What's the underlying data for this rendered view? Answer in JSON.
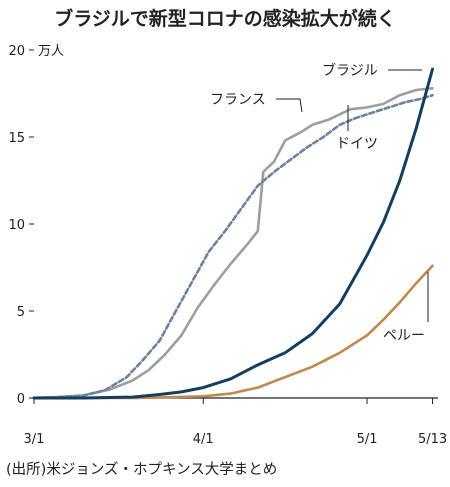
{
  "chart_data": {
    "type": "line",
    "title": "ブラジルで新型コロナの感染拡大が続く",
    "source": "(出所)米ジョンズ・ホプキンス大学まとめ",
    "ylabel": "万人",
    "ylim": [
      0,
      20
    ],
    "yticks": [
      0,
      5,
      10,
      15,
      20
    ],
    "xlim": [
      "2020-03-01",
      "2020-05-14"
    ],
    "xticks": [
      {
        "date": "2020-03-01",
        "label": "3/1"
      },
      {
        "date": "2020-04-01",
        "label": "4/1"
      },
      {
        "date": "2020-05-01",
        "label": "5/1"
      },
      {
        "date": "2020-05-13",
        "label": "5/13"
      }
    ],
    "grid": false,
    "legend": "direct labels",
    "series": [
      {
        "name": "ブラジル",
        "color": "#163d5e",
        "style": "solid",
        "points": [
          [
            "2020-03-01",
            0
          ],
          [
            "2020-03-10",
            0
          ],
          [
            "2020-03-19",
            0.05
          ],
          [
            "2020-03-24",
            0.2
          ],
          [
            "2020-03-28",
            0.35
          ],
          [
            "2020-04-01",
            0.6
          ],
          [
            "2020-04-06",
            1.1
          ],
          [
            "2020-04-11",
            1.9
          ],
          [
            "2020-04-16",
            2.6
          ],
          [
            "2020-04-21",
            3.7
          ],
          [
            "2020-04-26",
            5.4
          ],
          [
            "2020-05-01",
            8.2
          ],
          [
            "2020-05-04",
            10.1
          ],
          [
            "2020-05-07",
            12.5
          ],
          [
            "2020-05-10",
            15.5
          ],
          [
            "2020-05-13",
            18.9
          ]
        ]
      },
      {
        "name": "フランス",
        "color": "#9e9e9e",
        "style": "solid",
        "points": [
          [
            "2020-03-01",
            0.01
          ],
          [
            "2020-03-05",
            0.05
          ],
          [
            "2020-03-10",
            0.15
          ],
          [
            "2020-03-15",
            0.5
          ],
          [
            "2020-03-19",
            1.0
          ],
          [
            "2020-03-22",
            1.6
          ],
          [
            "2020-03-25",
            2.5
          ],
          [
            "2020-03-28",
            3.6
          ],
          [
            "2020-03-31",
            5.2
          ],
          [
            "2020-04-03",
            6.5
          ],
          [
            "2020-04-06",
            7.7
          ],
          [
            "2020-04-09",
            8.8
          ],
          [
            "2020-04-11",
            9.6
          ],
          [
            "2020-04-12",
            13.0
          ],
          [
            "2020-04-14",
            13.6
          ],
          [
            "2020-04-16",
            14.8
          ],
          [
            "2020-04-19",
            15.3
          ],
          [
            "2020-04-21",
            15.7
          ],
          [
            "2020-04-24",
            16.0
          ],
          [
            "2020-04-28",
            16.6
          ],
          [
            "2020-05-01",
            16.7
          ],
          [
            "2020-05-04",
            16.9
          ],
          [
            "2020-05-07",
            17.4
          ],
          [
            "2020-05-10",
            17.7
          ],
          [
            "2020-05-13",
            17.8
          ]
        ]
      },
      {
        "name": "ドイツ",
        "color": "#6b82a0",
        "style": "dashed",
        "points": [
          [
            "2020-03-01",
            0.01
          ],
          [
            "2020-03-05",
            0.03
          ],
          [
            "2020-03-10",
            0.13
          ],
          [
            "2020-03-14",
            0.45
          ],
          [
            "2020-03-18",
            1.2
          ],
          [
            "2020-03-21",
            2.2
          ],
          [
            "2020-03-24",
            3.3
          ],
          [
            "2020-03-27",
            5.0
          ],
          [
            "2020-03-30",
            6.7
          ],
          [
            "2020-04-02",
            8.4
          ],
          [
            "2020-04-05",
            9.6
          ],
          [
            "2020-04-08",
            10.9
          ],
          [
            "2020-04-11",
            12.2
          ],
          [
            "2020-04-14",
            13.0
          ],
          [
            "2020-04-17",
            13.7
          ],
          [
            "2020-04-20",
            14.4
          ],
          [
            "2020-04-23",
            15.0
          ],
          [
            "2020-04-26",
            15.7
          ],
          [
            "2020-04-29",
            16.1
          ],
          [
            "2020-05-02",
            16.4
          ],
          [
            "2020-05-05",
            16.7
          ],
          [
            "2020-05-08",
            17.0
          ],
          [
            "2020-05-11",
            17.2
          ],
          [
            "2020-05-13",
            17.4
          ]
        ]
      },
      {
        "name": "ペルー",
        "color": "#c08a4e",
        "style": "solid",
        "points": [
          [
            "2020-03-01",
            0
          ],
          [
            "2020-03-20",
            0
          ],
          [
            "2020-04-01",
            0.1
          ],
          [
            "2020-04-06",
            0.25
          ],
          [
            "2020-04-11",
            0.6
          ],
          [
            "2020-04-16",
            1.2
          ],
          [
            "2020-04-21",
            1.8
          ],
          [
            "2020-04-26",
            2.6
          ],
          [
            "2020-05-01",
            3.6
          ],
          [
            "2020-05-04",
            4.5
          ],
          [
            "2020-05-07",
            5.5
          ],
          [
            "2020-05-10",
            6.6
          ],
          [
            "2020-05-13",
            7.6
          ]
        ]
      }
    ]
  }
}
